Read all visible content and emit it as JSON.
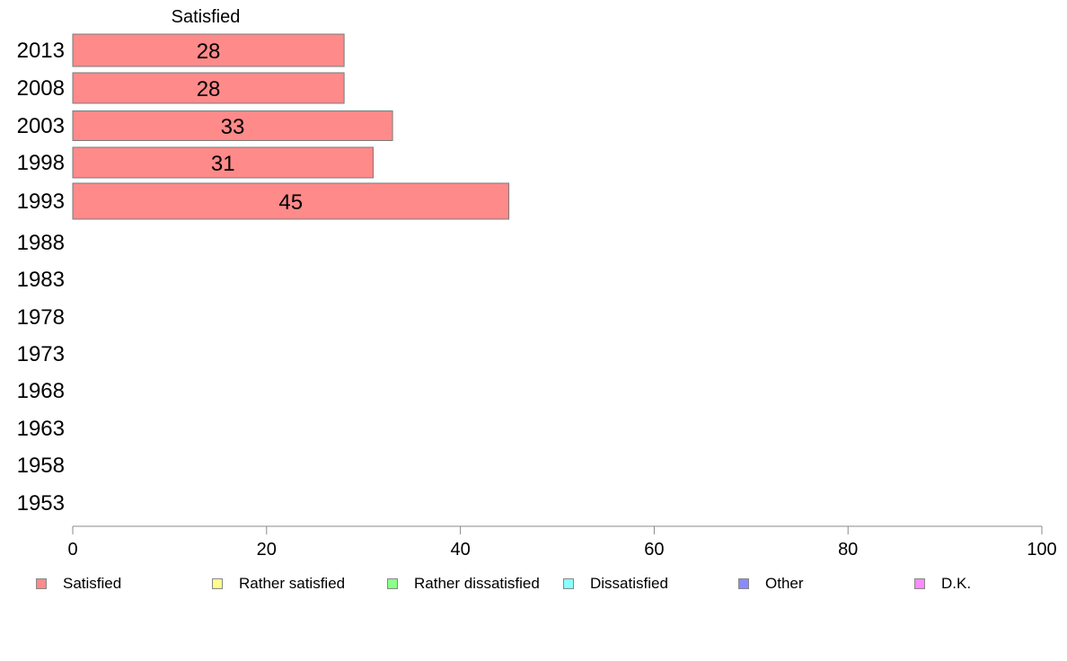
{
  "chart_data": {
    "type": "bar",
    "orientation": "horizontal",
    "series_header": "Satisfied",
    "categories": [
      "2013",
      "2008",
      "2003",
      "1998",
      "1993",
      "1988",
      "1983",
      "1978",
      "1973",
      "1968",
      "1963",
      "1958",
      "1953"
    ],
    "series": [
      {
        "name": "Satisfied",
        "color": "#ff8a8a",
        "values": [
          28,
          28,
          33,
          31,
          45,
          null,
          null,
          null,
          null,
          null,
          null,
          null,
          null
        ]
      }
    ],
    "data_labels": [
      "28",
      "28",
      "33",
      "31",
      "45",
      "",
      "",
      "",
      "",
      "",
      "",
      "",
      ""
    ],
    "x_ticks": [
      0,
      20,
      40,
      60,
      80,
      100
    ],
    "xlim": [
      0,
      100
    ],
    "grid": false,
    "legend_position": "bottom"
  },
  "legend": [
    {
      "label": "Satisfied",
      "color": "#ff8a8a"
    },
    {
      "label": "Rather satisfied",
      "color": "#ffff8a"
    },
    {
      "label": "Rather dissatisfied",
      "color": "#8aff8a"
    },
    {
      "label": "Dissatisfied",
      "color": "#8affff"
    },
    {
      "label": "Other",
      "color": "#8a8aff"
    },
    {
      "label": "D.K.",
      "color": "#ff8aff"
    }
  ]
}
